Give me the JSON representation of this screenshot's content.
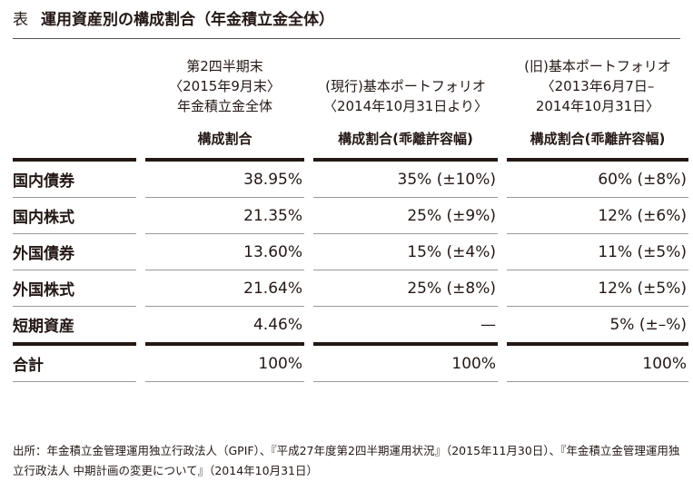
{
  "header": {
    "label": "表",
    "title": "運用資産別の構成割合（年金積立金全体）"
  },
  "table": {
    "columns": [
      {
        "lines": [
          "第2四半期末",
          "〈2015年9月末〉",
          "年金積立金全体"
        ],
        "subheading": "構成割合"
      },
      {
        "lines": [
          "(現行)基本ポートフォリオ",
          "〈2014年10月31日より〉"
        ],
        "subheading": "構成割合(乖離許容幅)"
      },
      {
        "lines": [
          "(旧)基本ポートフォリオ",
          "〈2013年6月7日–",
          "2014年10月31日〉"
        ],
        "subheading": "構成割合(乖離許容幅)"
      }
    ],
    "rows": [
      [
        "国内債券",
        "38.95%",
        "35% (±10%)",
        "60% (±8%)"
      ],
      [
        "国内株式",
        "21.35%",
        "25% (±9%)",
        "12% (±6%)"
      ],
      [
        "外国債券",
        "13.60%",
        "15% (±4%)",
        "11% (±5%)"
      ],
      [
        "外国株式",
        "21.64%",
        "25% (±8%)",
        "12% (±5%)"
      ],
      [
        "短期資産",
        "4.46%",
        "—",
        "5% (±–%)"
      ],
      [
        "合計",
        "100%",
        "100%",
        "100%"
      ]
    ]
  },
  "footer": {
    "source": "出所：年金積立金管理運用独立行政法人（GPIF）、『平成27年度第2四半期運用状況』（2015年11月30日）、『年金積立金管理運用独立行政法人 中期計画の変更について』（2014年10月31日）"
  }
}
